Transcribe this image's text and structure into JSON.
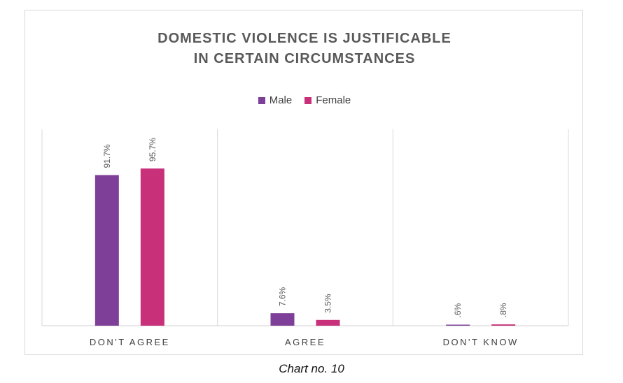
{
  "chart_data": {
    "type": "bar",
    "title_lines": [
      "DOMESTIC VIOLENCE IS JUSTIFICABLE",
      "IN CERTAIN CIRCUMSTANCES"
    ],
    "categories": [
      "DON'T AGREE",
      "AGREE",
      "DON'T KNOW"
    ],
    "series": [
      {
        "name": "Male",
        "color": "#7e3f98",
        "values": [
          91.7,
          7.6,
          0.6
        ],
        "labels": [
          "91.7%",
          "7.6%",
          ".6%"
        ]
      },
      {
        "name": "Female",
        "color": "#c8317a",
        "values": [
          95.7,
          3.5,
          0.8
        ],
        "labels": [
          "95.7%",
          "3.5%",
          ".8%"
        ]
      }
    ],
    "ylim": [
      0,
      120
    ],
    "legend_position": "top",
    "grid": "vertical separators"
  },
  "caption": "Chart no. 10"
}
